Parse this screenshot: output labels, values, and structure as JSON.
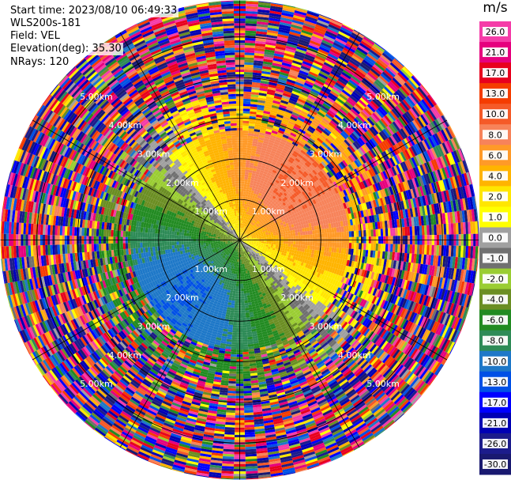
{
  "info": {
    "start_time": "Start time: 2023/08/10 06:49:33",
    "instrument": "WLS200s-181",
    "field": "Field: VEL",
    "elevation": "Elevation(deg): 35.30",
    "nrays": "NRays: 120"
  },
  "chart_data": {
    "type": "heatmap",
    "projection": "polar-ppi",
    "field": "VEL",
    "units": "m/s",
    "n_rays": 120,
    "elevation_deg": 35.3,
    "range_rings_km": [
      1.0,
      2.0,
      3.0,
      4.0,
      5.0
    ],
    "ring_labels": [
      "1.00km",
      "2.00km",
      "3.00km",
      "4.00km",
      "5.00km"
    ],
    "max_range_km": 5.9,
    "azimuth_spokes_deg": [
      0,
      30,
      60,
      90,
      120,
      150,
      180,
      210,
      240,
      270,
      300,
      330
    ],
    "pattern": {
      "description_values": "radial velocity, approaching (negative) toward south-west, receding (positive) toward north-east",
      "direction_deg": 45,
      "peak_positive": 10.0,
      "peak_negative": -10.0,
      "zero_line_offset_deg": 0,
      "clean_range_km": 2.7,
      "noise_range_start_km": 3.6
    },
    "colorbar": {
      "unit": "m/s",
      "ticks": [
        "26.0",
        "21.0",
        "17.0",
        "13.0",
        "10.0",
        "8.0",
        "6.0",
        "4.0",
        "2.0",
        "1.0",
        "0.0",
        "-1.0",
        "-2.0",
        "-4.0",
        "-6.0",
        "-8.0",
        "-10.0",
        "-13.0",
        "-17.0",
        "-21.0",
        "-26.0",
        "-30.0"
      ],
      "boundaries": [
        30,
        26,
        21,
        17,
        13,
        10,
        8,
        6,
        4,
        2,
        1,
        0,
        -1,
        -2,
        -4,
        -6,
        -8,
        -10,
        -13,
        -17,
        -21,
        -26,
        -30
      ],
      "colors": [
        "#f53ca8",
        "#e6007e",
        "#e8001e",
        "#f53c00",
        "#f55a28",
        "#f7835a",
        "#ff9a28",
        "#ffb400",
        "#ffe600",
        "#ffff00",
        "#a0a0a0",
        "#707070",
        "#9acd32",
        "#6b8e23",
        "#228b22",
        "#2e8b57",
        "#1e78c8",
        "#0050e6",
        "#0000ff",
        "#0000b4",
        "#1c1c8c",
        "#191970"
      ]
    }
  }
}
